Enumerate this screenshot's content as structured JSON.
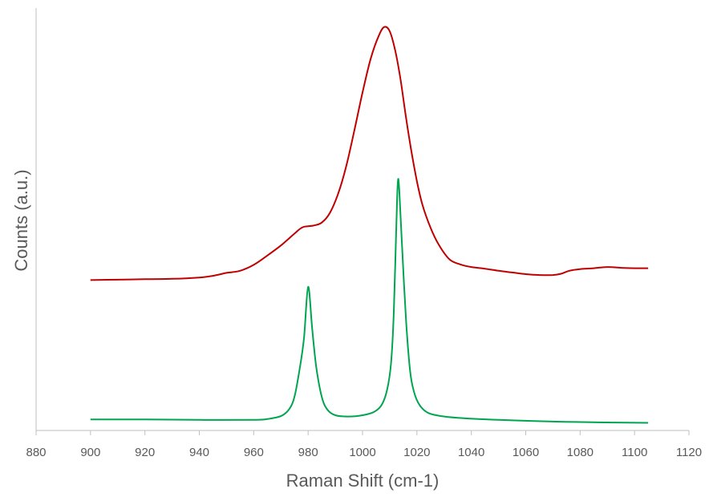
{
  "chart_data": {
    "type": "line",
    "title": "",
    "xlabel": "Raman Shift (cm-1)",
    "ylabel": "Counts (a.u.)",
    "xlim": [
      880,
      1120
    ],
    "ylim": [
      0,
      100
    ],
    "x_ticks": [
      "880",
      "900",
      "920",
      "940",
      "960",
      "980",
      "1000",
      "1020",
      "1040",
      "1060",
      "1080",
      "1100",
      "1120"
    ],
    "y_tick_labels_shown": false,
    "grid": false,
    "legend": "none",
    "series": [
      {
        "color": "#c00000",
        "points": [
          [
            900,
            35.6
          ],
          [
            910,
            35.7
          ],
          [
            920,
            35.8
          ],
          [
            930,
            35.9
          ],
          [
            940,
            36.2
          ],
          [
            945,
            36.6
          ],
          [
            950,
            37.3
          ],
          [
            955,
            37.8
          ],
          [
            960,
            39.2
          ],
          [
            965,
            41.4
          ],
          [
            970,
            43.8
          ],
          [
            975,
            46.6
          ],
          [
            978,
            48.1
          ],
          [
            982,
            48.5
          ],
          [
            985,
            49.2
          ],
          [
            988,
            51.5
          ],
          [
            991,
            56
          ],
          [
            994,
            62.5
          ],
          [
            997,
            71
          ],
          [
            1000,
            80
          ],
          [
            1003,
            88
          ],
          [
            1006,
            93.5
          ],
          [
            1008,
            95.5
          ],
          [
            1010,
            94.5
          ],
          [
            1012,
            90
          ],
          [
            1014,
            83
          ],
          [
            1016,
            74
          ],
          [
            1018,
            66
          ],
          [
            1020,
            59
          ],
          [
            1022,
            53.5
          ],
          [
            1025,
            48
          ],
          [
            1028,
            44
          ],
          [
            1032,
            40.5
          ],
          [
            1036,
            39.3
          ],
          [
            1040,
            38.7
          ],
          [
            1045,
            38.3
          ],
          [
            1050,
            37.8
          ],
          [
            1055,
            37.4
          ],
          [
            1060,
            37
          ],
          [
            1065,
            36.8
          ],
          [
            1070,
            36.8
          ],
          [
            1073,
            37.1
          ],
          [
            1076,
            37.8
          ],
          [
            1080,
            38.2
          ],
          [
            1085,
            38.4
          ],
          [
            1090,
            38.7
          ],
          [
            1095,
            38.5
          ],
          [
            1100,
            38.4
          ],
          [
            1105,
            38.4
          ]
        ]
      },
      {
        "color": "#00a550",
        "points": [
          [
            900,
            2.6
          ],
          [
            920,
            2.6
          ],
          [
            940,
            2.5
          ],
          [
            960,
            2.5
          ],
          [
            965,
            2.7
          ],
          [
            970,
            3.4
          ],
          [
            973,
            5
          ],
          [
            975,
            8
          ],
          [
            977,
            15
          ],
          [
            978.5,
            22
          ],
          [
            980,
            34
          ],
          [
            981.5,
            24
          ],
          [
            983,
            15
          ],
          [
            985,
            8
          ],
          [
            987,
            5
          ],
          [
            990,
            3.6
          ],
          [
            995,
            3.3
          ],
          [
            1000,
            3.6
          ],
          [
            1004,
            4.3
          ],
          [
            1007,
            6
          ],
          [
            1009,
            9.5
          ],
          [
            1010.5,
            16
          ],
          [
            1011.5,
            28
          ],
          [
            1012.5,
            50
          ],
          [
            1013,
            59
          ],
          [
            1013.5,
            57
          ],
          [
            1014.5,
            44
          ],
          [
            1016,
            26
          ],
          [
            1017.5,
            14
          ],
          [
            1019,
            9
          ],
          [
            1021,
            6
          ],
          [
            1024,
            4.2
          ],
          [
            1028,
            3.5
          ],
          [
            1035,
            3
          ],
          [
            1050,
            2.5
          ],
          [
            1070,
            2.1
          ],
          [
            1090,
            1.9
          ],
          [
            1105,
            1.8
          ]
        ]
      }
    ]
  }
}
